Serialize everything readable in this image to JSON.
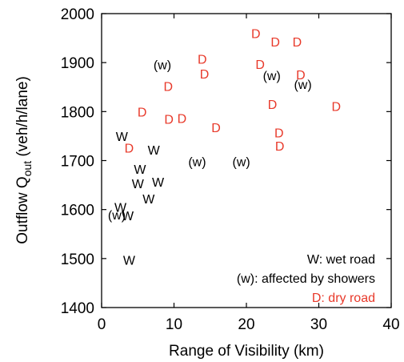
{
  "chart_data": {
    "type": "scatter",
    "xlabel": "Range of Visibility (km)",
    "ylabel": {
      "prefix": "Outflow Q",
      "subscript": "out",
      "suffix": " (veh/h/lane)"
    },
    "xlim": [
      0,
      40
    ],
    "ylim": [
      1400,
      2000
    ],
    "xticks": [
      0,
      10,
      20,
      30,
      40
    ],
    "yticks": [
      1400,
      1500,
      1600,
      1700,
      1800,
      1900,
      2000
    ],
    "grid": false,
    "legend_position": "bottom-right",
    "legend": [
      {
        "label": "W: wet road",
        "color": "#000000"
      },
      {
        "label": "(w): affected by showers",
        "color": "#000000"
      },
      {
        "label": "D: dry road",
        "color": "#e8392a"
      }
    ],
    "series": [
      {
        "marker": "W",
        "color": "#000000",
        "points": [
          {
            "x": 2.8,
            "y": 1750
          },
          {
            "x": 7.2,
            "y": 1722
          },
          {
            "x": 5.3,
            "y": 1683
          },
          {
            "x": 5.0,
            "y": 1653
          },
          {
            "x": 7.8,
            "y": 1657
          },
          {
            "x": 6.5,
            "y": 1622
          },
          {
            "x": 2.6,
            "y": 1605
          },
          {
            "x": 3.6,
            "y": 1588
          },
          {
            "x": 3.8,
            "y": 1497
          }
        ]
      },
      {
        "marker": "(w)",
        "color": "#000000",
        "points": [
          {
            "x": 8.4,
            "y": 1896
          },
          {
            "x": 23.5,
            "y": 1874
          },
          {
            "x": 27.8,
            "y": 1856
          },
          {
            "x": 13.2,
            "y": 1698
          },
          {
            "x": 19.3,
            "y": 1698
          },
          {
            "x": 2.1,
            "y": 1590
          }
        ]
      },
      {
        "marker": "D",
        "color": "#e8392a",
        "points": [
          {
            "x": 21.3,
            "y": 1960
          },
          {
            "x": 24.0,
            "y": 1943
          },
          {
            "x": 27.0,
            "y": 1943
          },
          {
            "x": 13.9,
            "y": 1908
          },
          {
            "x": 21.9,
            "y": 1897
          },
          {
            "x": 14.2,
            "y": 1877
          },
          {
            "x": 27.5,
            "y": 1876
          },
          {
            "x": 9.2,
            "y": 1852
          },
          {
            "x": 23.6,
            "y": 1815
          },
          {
            "x": 32.4,
            "y": 1811
          },
          {
            "x": 5.6,
            "y": 1800
          },
          {
            "x": 9.3,
            "y": 1785
          },
          {
            "x": 11.1,
            "y": 1787
          },
          {
            "x": 15.8,
            "y": 1768
          },
          {
            "x": 24.5,
            "y": 1757
          },
          {
            "x": 24.6,
            "y": 1730
          },
          {
            "x": 3.8,
            "y": 1726
          }
        ]
      }
    ]
  }
}
